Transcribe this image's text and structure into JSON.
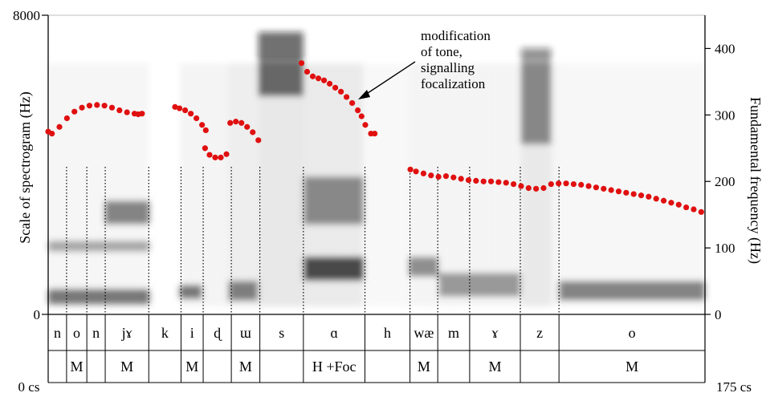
{
  "chart_data": {
    "type": "line",
    "title": "",
    "ylabel_left": "Scale of spectrogram (Hz)",
    "ylabel_right": "Fundamental frequency (Hz)",
    "left_axis": {
      "ylim": [
        0,
        8000
      ],
      "ticks": [
        "0",
        "8000"
      ]
    },
    "right_axis": {
      "ylim": [
        0,
        450
      ],
      "ticks": [
        "0",
        "100",
        "200",
        "300",
        "400"
      ]
    },
    "x_axis": {
      "range_cs": [
        0,
        175
      ],
      "start_label": "0 cs",
      "end_label": "175 cs"
    },
    "annotation": "modification\nof tone,\nsignalling\nfocalization",
    "segments": [
      {
        "label": "n",
        "start_cs": 0,
        "end_cs": 4.9
      },
      {
        "label": "o",
        "start_cs": 4.9,
        "end_cs": 10.3
      },
      {
        "label": "n",
        "start_cs": 10.3,
        "end_cs": 15.2
      },
      {
        "label": "jɤ",
        "start_cs": 15.2,
        "end_cs": 26.8
      },
      {
        "label": "k",
        "start_cs": 26.8,
        "end_cs": 35.4
      },
      {
        "label": "i",
        "start_cs": 35.4,
        "end_cs": 41.3
      },
      {
        "label": "ɖ",
        "start_cs": 41.3,
        "end_cs": 48.8
      },
      {
        "label": "ɯ",
        "start_cs": 48.8,
        "end_cs": 56.4
      },
      {
        "label": "s",
        "start_cs": 56.4,
        "end_cs": 68.0
      },
      {
        "label": "ɑ",
        "start_cs": 68.0,
        "end_cs": 84.4
      },
      {
        "label": "h",
        "start_cs": 84.4,
        "end_cs": 96.4
      },
      {
        "label": "wæ",
        "start_cs": 96.4,
        "end_cs": 103.8
      },
      {
        "label": "m",
        "start_cs": 103.8,
        "end_cs": 112.3
      },
      {
        "label": "ɤ",
        "start_cs": 112.3,
        "end_cs": 125.8
      },
      {
        "label": "z",
        "start_cs": 125.8,
        "end_cs": 136.1
      },
      {
        "label": "o",
        "start_cs": 136.1,
        "end_cs": 175
      }
    ],
    "tones": [
      {
        "label": "M",
        "start_cs": 4.9,
        "end_cs": 10.3
      },
      {
        "label": "M",
        "start_cs": 15.2,
        "end_cs": 26.8
      },
      {
        "label": "M",
        "start_cs": 35.4,
        "end_cs": 41.3
      },
      {
        "label": "M",
        "start_cs": 48.8,
        "end_cs": 56.4
      },
      {
        "label": "H +Foc",
        "start_cs": 68.0,
        "end_cs": 84.4
      },
      {
        "label": "M",
        "start_cs": 96.4,
        "end_cs": 103.8
      },
      {
        "label": "M",
        "start_cs": 112.3,
        "end_cs": 125.8
      },
      {
        "label": "M",
        "start_cs": 136.1,
        "end_cs": 175
      }
    ],
    "series": [
      {
        "color": "#e01010",
        "f0_contours": [
          {
            "x": [
              0.0,
              1.0,
              3.0,
              5.0,
              7.0,
              9.0,
              11.0,
              13.0,
              15.0,
              17.0,
              19.0,
              21.0,
              23.0,
              24.0,
              25.0
            ],
            "y": [
              275,
              272,
              282,
              295,
              305,
              311,
              314,
              315,
              314,
              311,
              307,
              304,
              302,
              301,
              302
            ]
          },
          {
            "x": [
              33.8,
              35.0,
              36.5,
              38.0,
              39.5,
              41.0,
              42.0
            ],
            "y": [
              312,
              310,
              307,
              302,
              295,
              285,
              277
            ]
          },
          {
            "x": [
              41.8,
              43.0,
              44.5,
              46.0,
              47.5
            ],
            "y": [
              250,
              240,
              236,
              236,
              241
            ]
          },
          {
            "x": [
              48.5,
              50.0,
              51.5,
              53.0,
              54.5,
              56.0
            ],
            "y": [
              288,
              290,
              288,
              282,
              274,
              262
            ]
          },
          {
            "x": [
              67.5,
              69.0,
              70.5,
              72.0,
              73.5,
              75.0,
              76.5,
              78.0,
              79.5,
              81.0,
              82.5,
              83.5,
              84.5,
              86.0,
              87.0
            ],
            "y": [
              378,
              365,
              358,
              355,
              352,
              347,
              341,
              335,
              327,
              318,
              307,
              298,
              285,
              272,
              272
            ]
          },
          {
            "x": [
              96.5,
              98.0,
              100.0,
              102.0,
              104.0,
              106.0,
              108.0,
              110.0,
              112.0,
              114.0,
              116.0,
              118.0,
              120.0,
              122.0,
              124.0,
              126.0,
              128.0,
              130.0,
              132.0,
              134.0,
              136.0,
              138.0,
              140.0,
              142.0,
              144.0,
              146.0,
              148.0,
              150.0,
              152.0,
              154.0,
              156.0,
              158.0,
              160.0,
              162.0,
              164.0,
              166.0,
              168.0,
              170.0,
              172.0,
              174.0
            ],
            "y": [
              218,
              215,
              212,
              209,
              207,
              208,
              206,
              204,
              202,
              201,
              200,
              200,
              199,
              198,
              196,
              193,
              190,
              189,
              190,
              196,
              197,
              197,
              196,
              195,
              193,
              191,
              189,
              187,
              185,
              183,
              181,
              179,
              177,
              174,
              171,
              168,
              165,
              161,
              158,
              154
            ]
          }
        ]
      }
    ],
    "grid": false,
    "legend": "none"
  }
}
